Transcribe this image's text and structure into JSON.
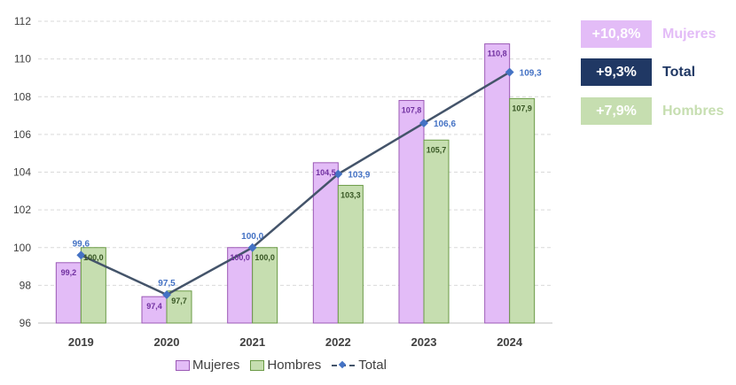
{
  "chart_data": {
    "type": "bar",
    "categories": [
      "2019",
      "2020",
      "2021",
      "2022",
      "2023",
      "2024"
    ],
    "series": [
      {
        "name": "Mujeres",
        "kind": "bar",
        "color": "#E3BCF7",
        "border": "#9B59B6",
        "label_color": "#7030A0",
        "values": [
          99.2,
          97.4,
          100.0,
          104.5,
          107.8,
          110.8
        ],
        "labels": [
          "99,2",
          "97,4",
          "100,0",
          "104,5",
          "107,8",
          "110,8"
        ]
      },
      {
        "name": "Hombres",
        "kind": "bar",
        "color": "#C6DEB0",
        "border": "#6A9A45",
        "label_color": "#375623",
        "values": [
          100.0,
          97.7,
          100.0,
          103.3,
          105.7,
          107.9
        ],
        "labels": [
          "100,0",
          "97,7",
          "100,0",
          "103,3",
          "105,7",
          "107,9"
        ]
      },
      {
        "name": "Total",
        "kind": "line",
        "color": "#44546A",
        "marker": "#4472C4",
        "label_color": "#4472C4",
        "values": [
          99.6,
          97.5,
          100.0,
          103.9,
          106.6,
          109.3
        ],
        "labels": [
          "99,6",
          "97,5",
          "100,0",
          "103,9",
          "106,6",
          "109,3"
        ]
      }
    ],
    "ylim": [
      96,
      112
    ],
    "yticks": [
      96,
      98,
      100,
      102,
      104,
      106,
      108,
      110,
      112
    ],
    "grid": true,
    "legend_position": "bottom",
    "title": "",
    "xlabel": "",
    "ylabel": ""
  },
  "legend": {
    "mujeres": "Mujeres",
    "hombres": "Hombres",
    "total": "Total"
  },
  "badges": [
    {
      "value": "+10,8%",
      "label": "Mujeres",
      "bg": "#E3BCF7",
      "label_color": "#E3BCF7"
    },
    {
      "value": "+9,3%",
      "label": "Total",
      "bg": "#203864",
      "label_color": "#203864"
    },
    {
      "value": "+7,9%",
      "label": "Hombres",
      "bg": "#C6DEB0",
      "label_color": "#C6DEB0"
    }
  ]
}
